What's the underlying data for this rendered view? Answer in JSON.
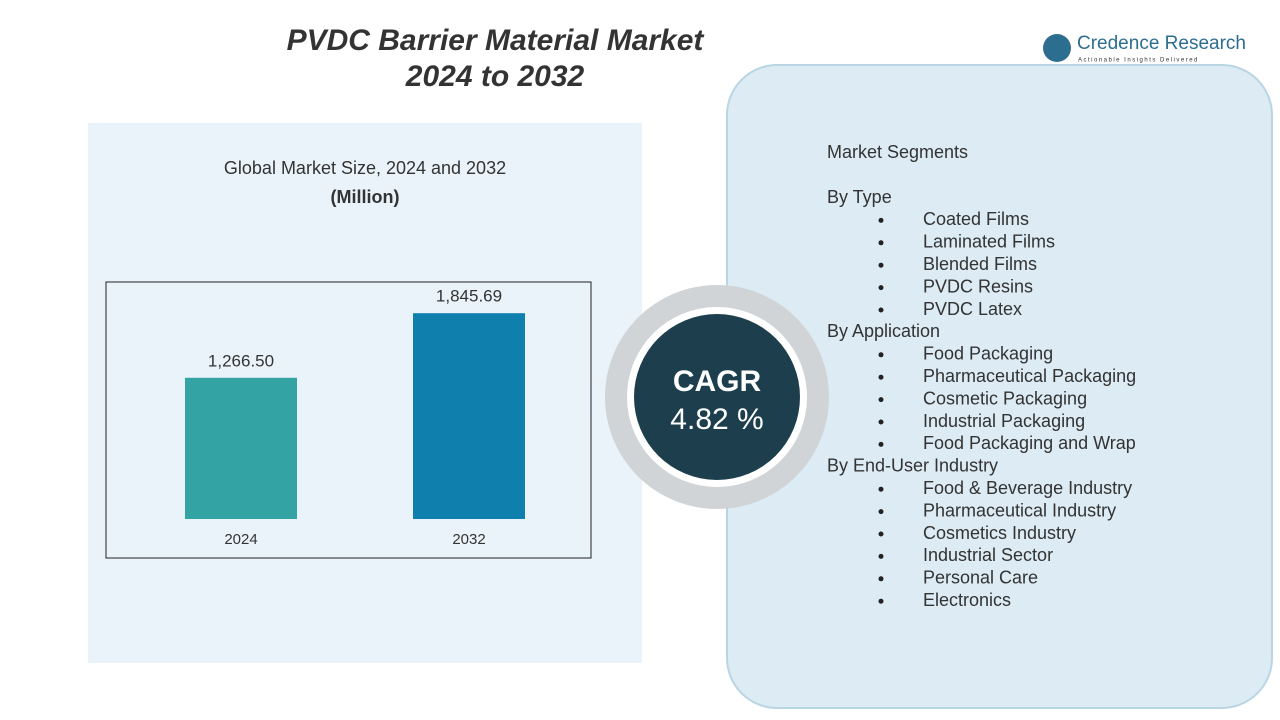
{
  "title": "PVDC Barrier Material Market",
  "subtitle": "2024 to 2032",
  "logo": {
    "name": "Credence Research",
    "tagline": "Actionable Insights Delivered"
  },
  "chart_data": {
    "type": "bar",
    "title": "Global Market Size, 2024 and 2032",
    "subtitle": "(Million)",
    "categories": [
      "2024",
      "2032"
    ],
    "values": [
      1266.5,
      1845.69
    ],
    "value_labels": [
      "1,266.50",
      "1,845.69"
    ],
    "colors": [
      "#33a3a3",
      "#0f7fae"
    ],
    "ylim": [
      0,
      2000
    ]
  },
  "cagr": {
    "label": "CAGR",
    "value": "4.82 %"
  },
  "segments": {
    "title": "Market Segments",
    "groups": [
      {
        "name": "By Type",
        "items": [
          "Coated Films",
          "Laminated Films",
          "Blended Films",
          "PVDC Resins",
          "PVDC Latex"
        ]
      },
      {
        "name": "By Application",
        "items": [
          "Food Packaging",
          "Pharmaceutical Packaging",
          "Cosmetic Packaging",
          "Industrial Packaging",
          "Food Packaging and Wrap"
        ]
      },
      {
        "name": "By End-User Industry",
        "items": [
          "Food & Beverage Industry",
          "Pharmaceutical Industry",
          "Cosmetics Industry",
          "Industrial Sector",
          "Personal Care",
          "Electronics"
        ]
      }
    ]
  }
}
